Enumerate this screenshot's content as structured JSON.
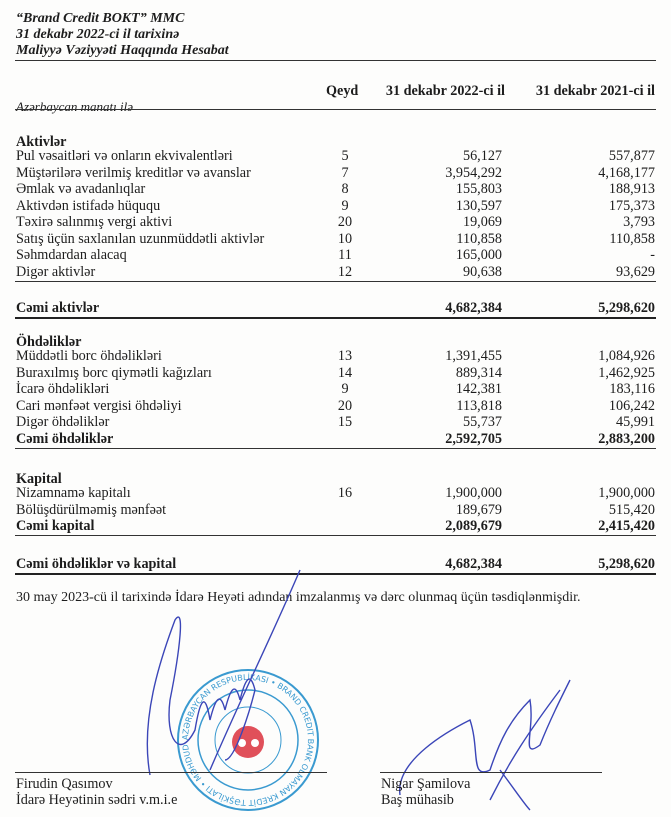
{
  "header": {
    "company": "“Brand Credit BOKT” MMC",
    "date_line": "31 dekabr 2022-ci il tarixinə",
    "title": "Maliyyə Vəziyyəti Haqqında Hesabat"
  },
  "columns": {
    "note": "Qeyd",
    "y2022": "31 dekabr 2022-ci il",
    "y2021": "31 dekabr 2021-ci il",
    "currency": "Azərbaycan manatı ilə"
  },
  "sections": [
    {
      "title": "Aktivlər",
      "rows": [
        {
          "label": "Pul vəsaitləri və onların ekvivalentləri",
          "note": "5",
          "v2022": "56,127",
          "v2021": "557,877"
        },
        {
          "label": "Müştərilərə verilmiş kreditlər və avanslar",
          "note": "7",
          "v2022": "3,954,292",
          "v2021": "4,168,177"
        },
        {
          "label": "Əmlak və avadanlıqlar",
          "note": "8",
          "v2022": "155,803",
          "v2021": "188,913"
        },
        {
          "label": "Aktivdən istifadə hüququ",
          "note": "9",
          "v2022": "130,597",
          "v2021": "175,373"
        },
        {
          "label": "Təxirə salınmış vergi aktivi",
          "note": "20",
          "v2022": "19,069",
          "v2021": "3,793"
        },
        {
          "label": "Satış üçün saxlanılan uzunmüddətli aktivlər",
          "note": "10",
          "v2022": "110,858",
          "v2021": "110,858"
        },
        {
          "label": "Səhmdardan alacaq",
          "note": "11",
          "v2022": "165,000",
          "v2021": "-"
        },
        {
          "label": "Digər aktivlər",
          "note": "12",
          "v2022": "90,638",
          "v2021": "93,629"
        }
      ],
      "total": {
        "label": "Cəmi aktivlər",
        "v2022": "4,682,384",
        "v2021": "5,298,620"
      }
    },
    {
      "title": "Öhdəliklər",
      "rows": [
        {
          "label": "Müddətli borc öhdəlikləri",
          "note": "13",
          "v2022": "1,391,455",
          "v2021": "1,084,926"
        },
        {
          "label": "Buraxılmış borc qiymətli kağızları",
          "note": "14",
          "v2022": "889,314",
          "v2021": "1,462,925"
        },
        {
          "label": "İcarə öhdəlikləri",
          "note": "9",
          "v2022": "142,381",
          "v2021": "183,116"
        },
        {
          "label": "Cari mənfəət vergisi öhdəliyi",
          "note": "20",
          "v2022": "113,818",
          "v2021": "106,242"
        },
        {
          "label": "Digər öhdəliklər",
          "note": "15",
          "v2022": "55,737",
          "v2021": "45,991"
        }
      ],
      "total": {
        "label": "Cəmi öhdəliklər",
        "v2022": "2,592,705",
        "v2021": "2,883,200"
      }
    },
    {
      "title": "Kapital",
      "rows": [
        {
          "label": "Nizamnamə kapitalı",
          "note": "16",
          "v2022": "1,900,000",
          "v2021": "1,900,000"
        },
        {
          "label": "Bölüşdürülməmiş mənfəət",
          "note": "",
          "v2022": "189,679",
          "v2021": "515,420"
        }
      ],
      "total": {
        "label": "Cəmi kapital",
        "v2022": "2,089,679",
        "v2021": "2,415,420"
      }
    }
  ],
  "grand_total": {
    "label": "Cəmi öhdəliklər və kapital",
    "v2022": "4,682,384",
    "v2021": "5,298,620"
  },
  "approval": "30 may 2023-cü il tarixində İdarə Heyəti adından imzalanmış və dərc olunmaq üçün təsdiqlənmişdir.",
  "signatories": [
    {
      "name": "Firudin Qasımov",
      "position": "İdarə Heyətinin sədri v.m.i.e"
    },
    {
      "name": "Nigar Şamilova",
      "position": "Baş mühasib"
    }
  ],
  "stamp": {
    "text": "AZƏRBAYCAN RESPUBLİKASI • BRAND CREDIT BANK OLMAYAN KREDİT TƏŞKİLATI • MƏHDUD MƏSULİYYƏTLİ CƏMİYYƏT •",
    "color": "#3a9ad0",
    "center_color": "#e0505a"
  },
  "ink_color": "#3b46b8"
}
